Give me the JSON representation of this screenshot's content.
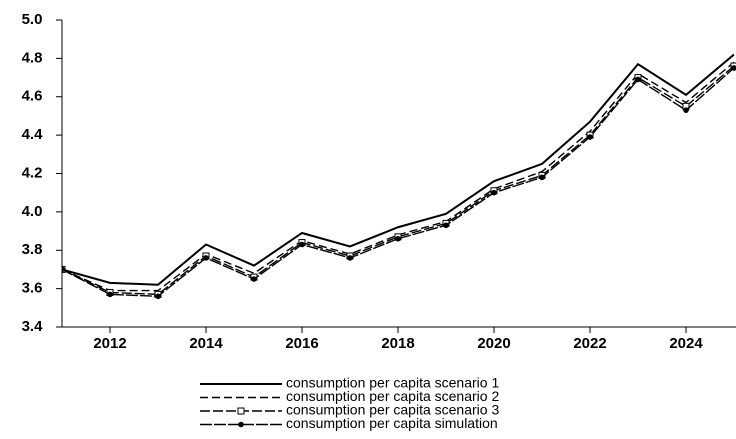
{
  "chart_data": {
    "type": "line",
    "x": [
      2011,
      2012,
      2013,
      2014,
      2015,
      2016,
      2017,
      2018,
      2019,
      2020,
      2021,
      2022,
      2023,
      2024,
      2025
    ],
    "series": [
      {
        "name": "consumption per capita  scenario 1",
        "color": "#000000",
        "dash": "none",
        "marker": "none",
        "values": [
          3.7,
          3.63,
          3.62,
          3.83,
          3.72,
          3.89,
          3.82,
          3.92,
          3.99,
          4.16,
          4.25,
          4.47,
          4.77,
          4.61,
          4.82
        ]
      },
      {
        "name": "consumption per capita  scenario 2",
        "color": "#000000",
        "dash": "8,4",
        "marker": "none",
        "values": [
          3.7,
          3.59,
          3.59,
          3.78,
          3.68,
          3.85,
          3.78,
          3.88,
          3.95,
          4.12,
          4.21,
          4.42,
          4.72,
          4.57,
          4.78
        ]
      },
      {
        "name": "consumption per capita  scenario 3",
        "color": "#000000",
        "dash": "10,3",
        "marker": "square",
        "values": [
          3.7,
          3.58,
          3.57,
          3.77,
          3.66,
          3.84,
          3.77,
          3.87,
          3.94,
          4.11,
          4.19,
          4.4,
          4.7,
          4.55,
          4.76
        ]
      },
      {
        "name": "consumption per capita simulation",
        "color": "#000000",
        "dash": "12,2",
        "marker": "circle",
        "values": [
          3.7,
          3.57,
          3.56,
          3.76,
          3.65,
          3.83,
          3.76,
          3.86,
          3.93,
          4.1,
          4.18,
          4.39,
          4.69,
          4.53,
          4.75
        ]
      }
    ],
    "xlim": [
      2011,
      2025
    ],
    "xticks": [
      2012,
      2014,
      2016,
      2018,
      2020,
      2022,
      2024
    ],
    "ylim": [
      3.4,
      5.0
    ],
    "yticks": [
      {
        "value": 3.4,
        "label": "3.4"
      },
      {
        "value": 3.6,
        "label": "3.6"
      },
      {
        "value": 3.8,
        "label": "3.8"
      },
      {
        "value": 4.0,
        "label": "4.0"
      },
      {
        "value": 4.2,
        "label": "4.2"
      },
      {
        "value": 4.4,
        "label": "4.4"
      },
      {
        "value": 4.6,
        "label": "4.6"
      },
      {
        "value": 4.8,
        "label": "4.8"
      },
      {
        "value": 5.0,
        "label": "5.0"
      }
    ],
    "legend": "bottom"
  }
}
